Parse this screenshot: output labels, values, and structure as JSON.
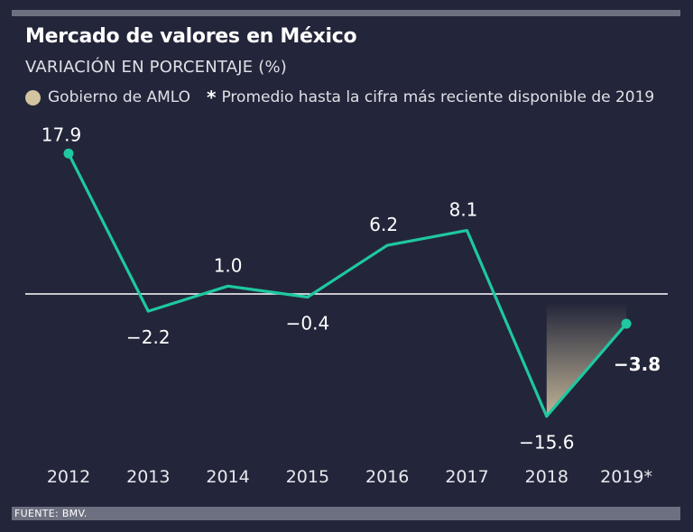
{
  "header": {
    "title": "Mercado de valores en México",
    "subtitle": "VARIACIÓN EN PORCENTAJE (%)",
    "legend_label": "Gobierno de AMLO",
    "legend_star": "*",
    "legend_note": "Promedio hasta la cifra más reciente disponible de 2019"
  },
  "footer": {
    "source": "FUENTE: BMV."
  },
  "chart_data": {
    "type": "line",
    "title": "Mercado de valores en México",
    "subtitle": "VARIACIÓN EN PORCENTAJE (%)",
    "x": [
      "2012",
      "2013",
      "2014",
      "2015",
      "2016",
      "2017",
      "2018",
      "2019*"
    ],
    "series": [
      {
        "values": [
          17.9,
          -2.2,
          1.0,
          -0.4,
          6.2,
          8.1,
          -15.6,
          -3.8
        ],
        "labels": [
          "17.9",
          "-2.2",
          "1.0",
          "-0.4",
          "6.2",
          "8.1",
          "-15.6",
          "-3.8"
        ],
        "color": "#1ec8a0"
      }
    ],
    "highlight": {
      "label": "Gobierno de AMLO",
      "from": "2018",
      "to": "2019*",
      "color": "#d3c4a1"
    },
    "zero_line": true,
    "grid": false,
    "xlabel": "",
    "ylabel": ""
  },
  "colors": {
    "background": "#23263a",
    "line": "#1ec8a0",
    "zero_line": "#ffffff",
    "amlo": "#d3c4a1",
    "rule": "#6d7080"
  }
}
